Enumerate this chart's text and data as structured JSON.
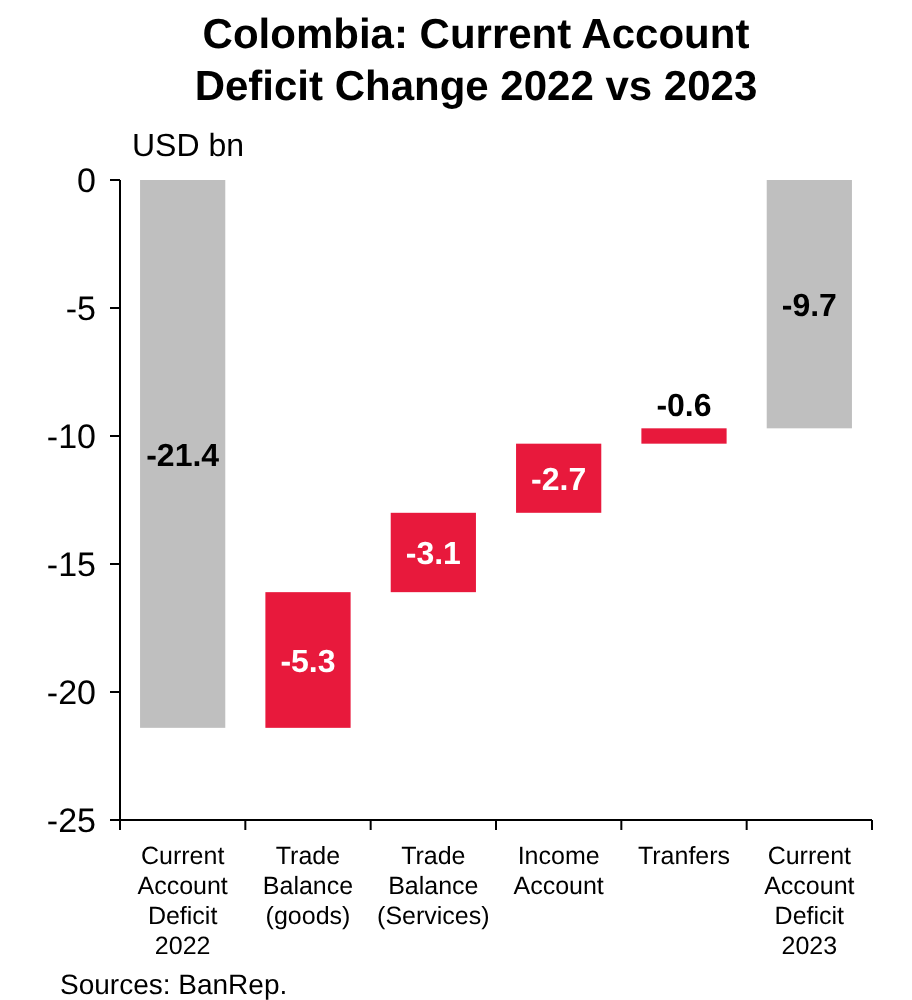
{
  "chart_data": {
    "type": "bar",
    "title": "Colombia: Current Account Deficit Change 2022 vs 2023",
    "ylabel": "USD bn",
    "categories": [
      "Current Account Deficit 2022",
      "Trade Balance (goods)",
      "Trade Balance (Services)",
      "Income Account",
      "Tranfers",
      "Current Account Deficit 2023"
    ],
    "values": [
      -21.4,
      -5.3,
      -3.1,
      -2.7,
      -0.6,
      -9.7
    ],
    "base": [
      0,
      -16.1,
      -13.0,
      -10.3,
      -9.7,
      0
    ],
    "colors": [
      "#bfbfbf",
      "#e8193c",
      "#e8193c",
      "#e8193c",
      "#e8193c",
      "#bfbfbf"
    ],
    "ylim": [
      -25,
      0
    ],
    "yticks": [
      0,
      -5,
      -10,
      -15,
      -20,
      -25
    ],
    "grid": false,
    "data_labels": true,
    "annotations": [
      "Sources: BanRep."
    ]
  }
}
